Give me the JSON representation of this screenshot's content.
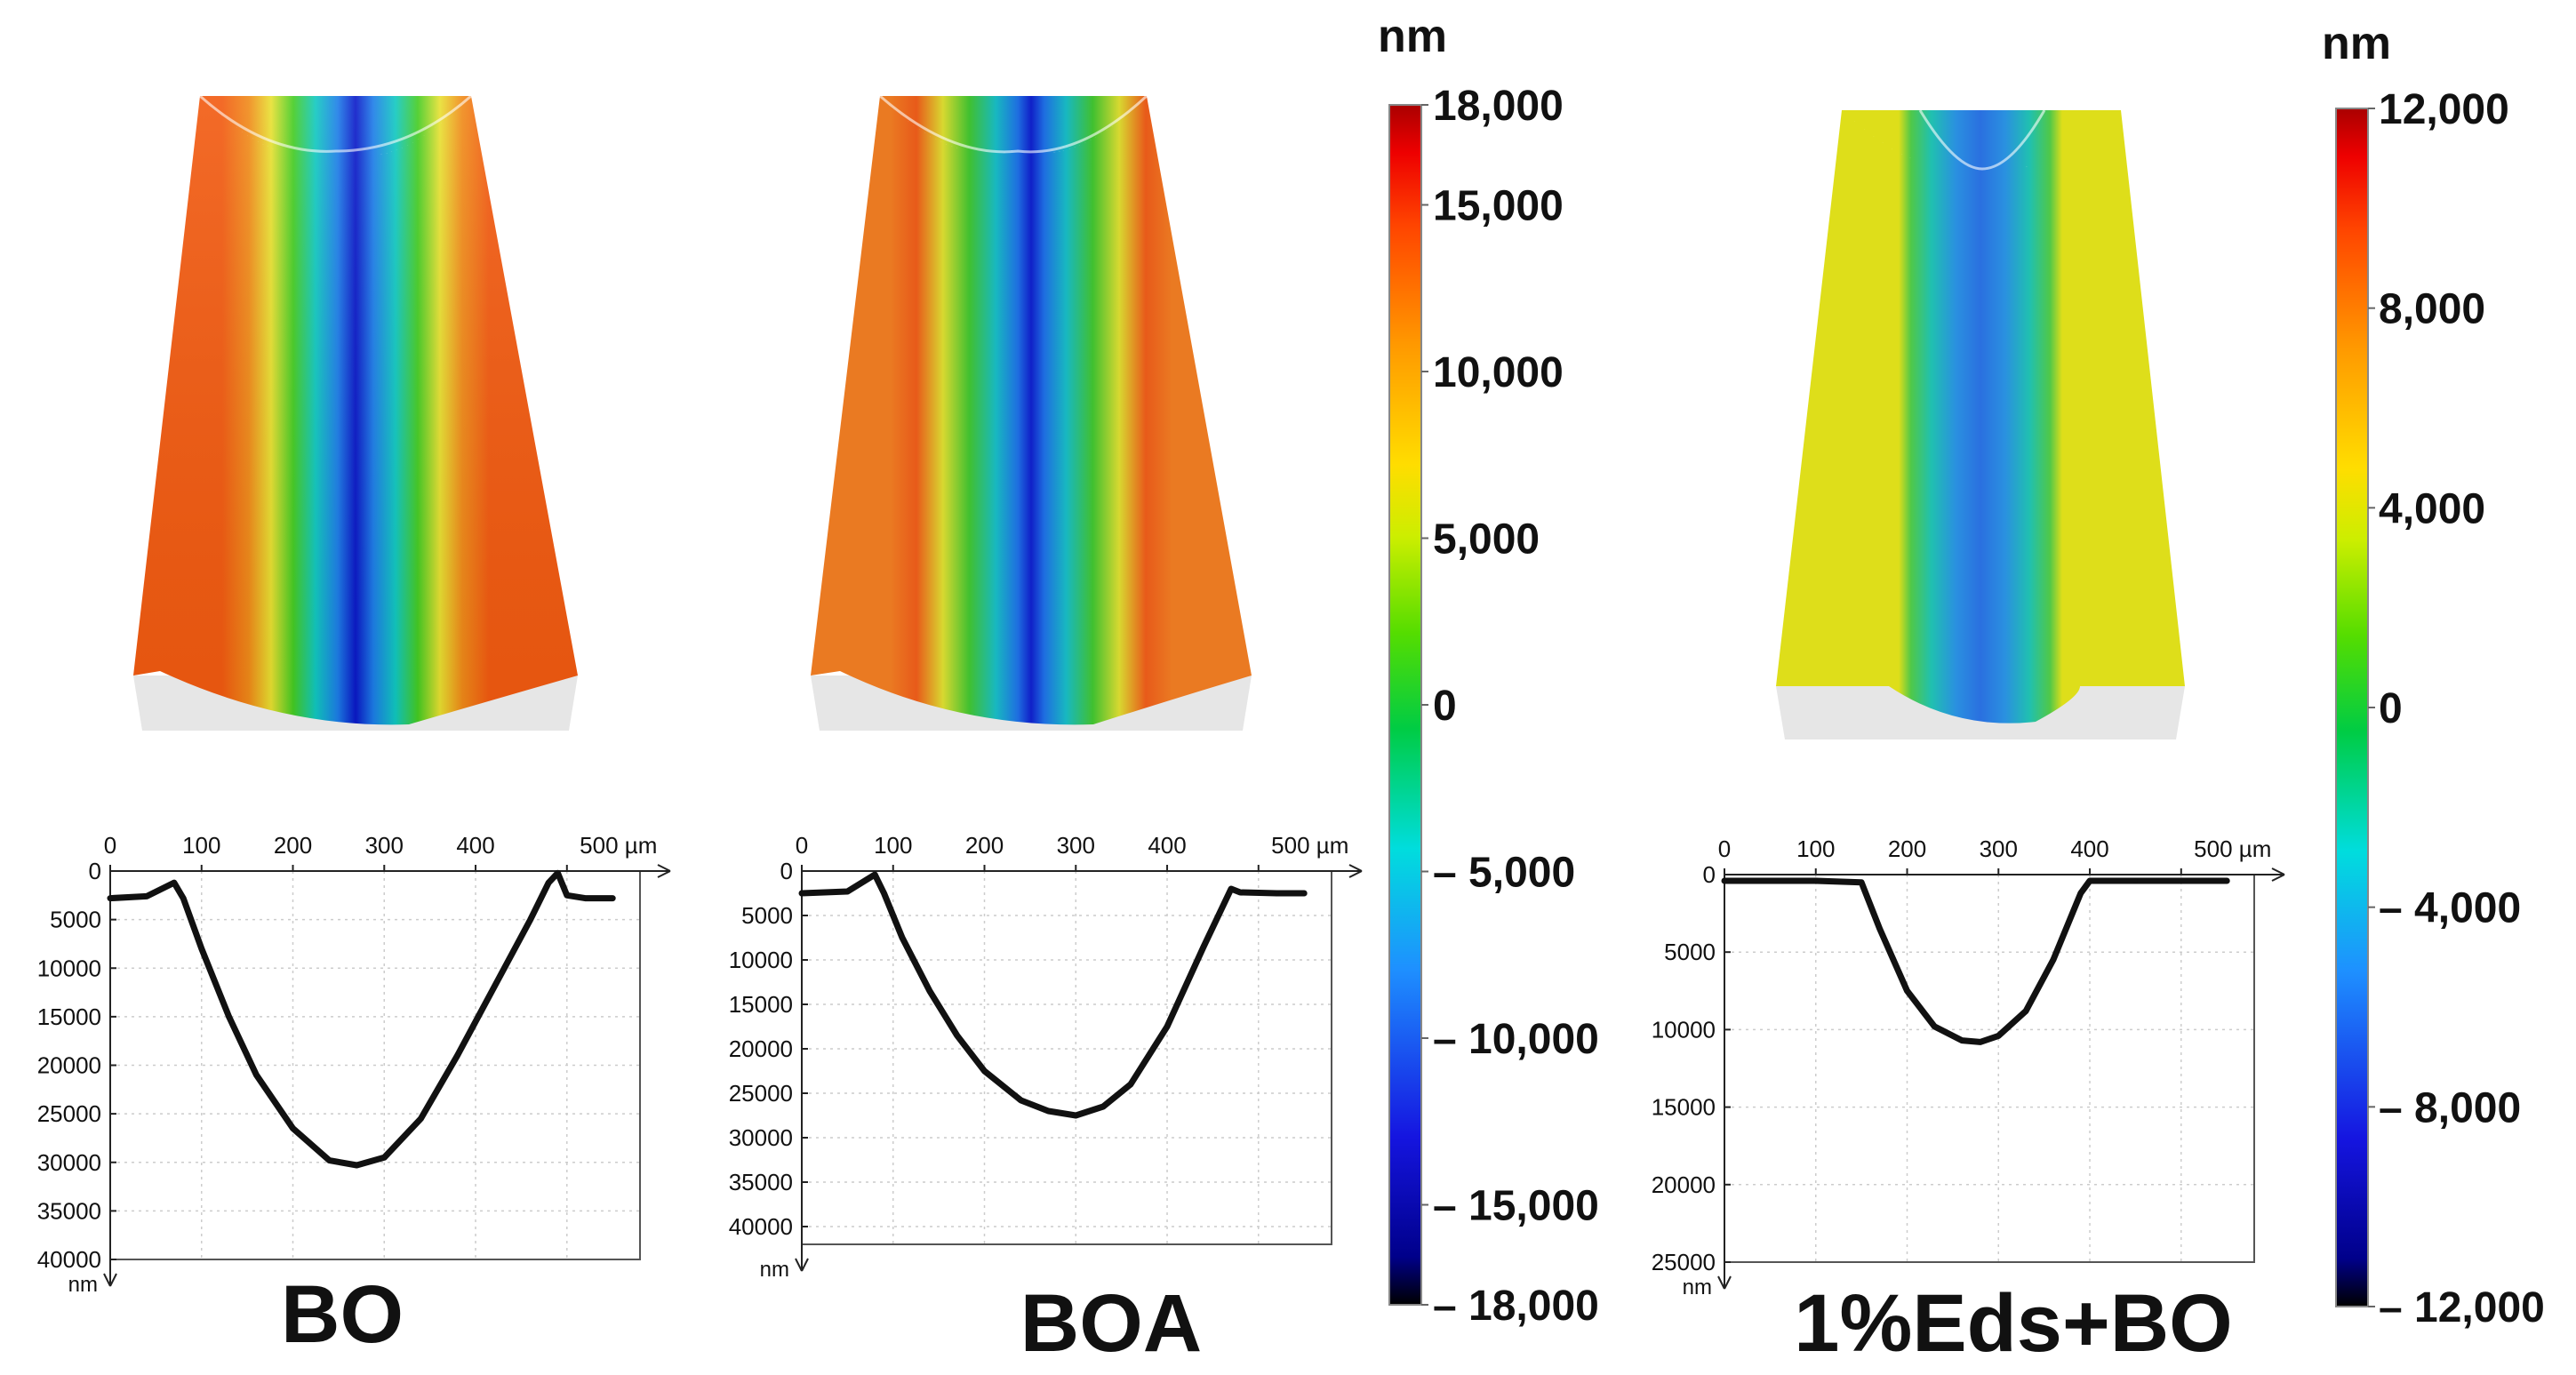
{
  "chart_data": [
    {
      "type": "line",
      "title": "",
      "sample_label": "BO",
      "xlabel": "µm",
      "ylabel": "nm",
      "x_unit_label": "500 µm",
      "y_unit_label": "nm",
      "xlim": [
        0,
        580
      ],
      "ylim": [
        40000,
        0
      ],
      "xticks": [
        0,
        100,
        200,
        300,
        400,
        500
      ],
      "yticks": [
        0,
        5000,
        10000,
        15000,
        20000,
        25000,
        30000,
        35000,
        40000
      ],
      "grid": true,
      "series": [
        {
          "x": [
            0,
            40,
            70,
            80,
            100,
            130,
            160,
            200,
            240,
            270,
            300,
            340,
            380,
            420,
            460,
            480,
            490,
            500,
            520,
            550
          ],
          "y": [
            2800,
            2600,
            1200,
            2800,
            8000,
            15000,
            21000,
            26500,
            29800,
            30300,
            29500,
            25500,
            19000,
            12000,
            5000,
            1200,
            200,
            2500,
            2800,
            2800
          ]
        }
      ]
    },
    {
      "type": "line",
      "title": "",
      "sample_label": "BOA",
      "xlabel": "µm",
      "ylabel": "nm",
      "x_unit_label": "500 µm",
      "y_unit_label": "nm",
      "xlim": [
        0,
        580
      ],
      "ylim": [
        42000,
        0
      ],
      "xticks": [
        0,
        100,
        200,
        300,
        400,
        500
      ],
      "yticks": [
        0,
        5000,
        10000,
        15000,
        20000,
        25000,
        30000,
        35000,
        40000
      ],
      "ytick_labels": [
        "0",
        "5000",
        "10000",
        "15000",
        "20000",
        "25000",
        "30000",
        "35000",
        "40000"
      ],
      "grid": true,
      "series": [
        {
          "x": [
            0,
            50,
            80,
            90,
            110,
            140,
            170,
            200,
            240,
            270,
            300,
            330,
            360,
            400,
            440,
            470,
            480,
            520,
            550
          ],
          "y": [
            2500,
            2300,
            400,
            2500,
            7500,
            13500,
            18500,
            22500,
            25800,
            27000,
            27500,
            26500,
            24000,
            17500,
            8500,
            2000,
            2400,
            2500,
            2500
          ]
        }
      ]
    },
    {
      "type": "line",
      "title": "",
      "sample_label": "1%Eds+BO",
      "xlabel": "µm",
      "ylabel": "nm",
      "x_unit_label": "500 µm",
      "y_unit_label": "nm",
      "xlim": [
        0,
        580
      ],
      "ylim": [
        25000,
        0
      ],
      "xticks": [
        0,
        100,
        200,
        300,
        400,
        500
      ],
      "yticks": [
        0,
        5000,
        10000,
        15000,
        20000,
        25000
      ],
      "grid": true,
      "series": [
        {
          "x": [
            0,
            100,
            150,
            170,
            200,
            230,
            260,
            280,
            300,
            330,
            360,
            390,
            400,
            450,
            550
          ],
          "y": [
            400,
            400,
            500,
            3500,
            7500,
            9800,
            10700,
            10800,
            10400,
            8800,
            5500,
            1200,
            400,
            400,
            400
          ]
        }
      ]
    }
  ],
  "colorbars": [
    {
      "unit": "nm",
      "range": [
        -18000,
        18000
      ],
      "tick_labels": [
        "18,000",
        "15,000",
        "10,000",
        "5,000",
        "0",
        "– 5,000",
        "– 10,000",
        "– 15,000",
        "– 18,000"
      ],
      "tick_values": [
        18000,
        15000,
        10000,
        5000,
        0,
        -5000,
        -10000,
        -15000,
        -18000
      ]
    },
    {
      "unit": "nm",
      "range": [
        -12000,
        12000
      ],
      "tick_labels": [
        "12,000",
        "8,000",
        "4,000",
        "0",
        "– 4,000",
        "– 8,000",
        "– 12,000"
      ],
      "tick_values": [
        12000,
        8000,
        4000,
        0,
        -4000,
        -8000,
        -12000
      ]
    }
  ],
  "surface_maps": [
    {
      "sample": "BO",
      "colorbar": 0,
      "edge_color": "#f25a10"
    },
    {
      "sample": "BOA",
      "colorbar": 0,
      "edge_color": "#ea7a22"
    },
    {
      "sample": "1%Eds+BO",
      "colorbar": 1,
      "edge_color": "#dede1a"
    }
  ],
  "colors": {
    "scale": [
      "#000000",
      "#00008a",
      "#1010e0",
      "#1e90ff",
      "#00dddd",
      "#00cc44",
      "#44dd00",
      "#ccee00",
      "#ffdd00",
      "#ff9900",
      "#ff4400",
      "#ee0000",
      "#aa0000"
    ],
    "profile_line": "#111111",
    "grid": "#cccccc"
  }
}
